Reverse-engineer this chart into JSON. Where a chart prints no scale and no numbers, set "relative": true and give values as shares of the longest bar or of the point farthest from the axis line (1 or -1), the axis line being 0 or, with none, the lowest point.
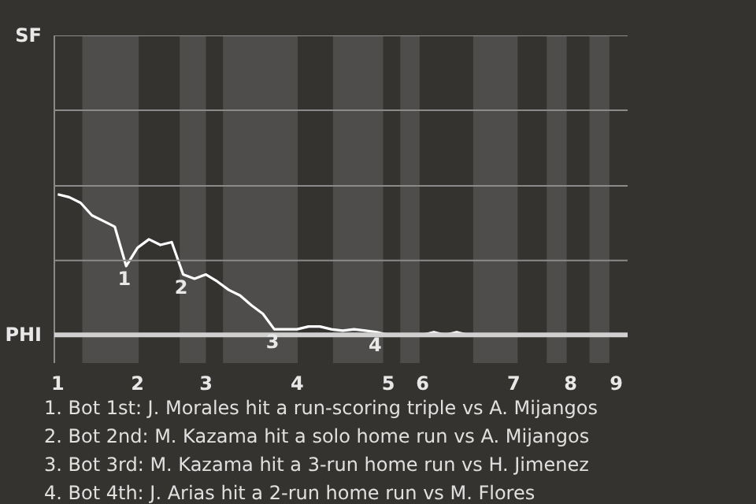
{
  "chart_data": {
    "type": "line",
    "relative": true,
    "categories": [
      "1",
      null,
      null,
      null,
      null,
      null,
      null,
      "2",
      null,
      null,
      null,
      null,
      null,
      "3",
      null,
      null,
      null,
      null,
      null,
      null,
      null,
      "4",
      null,
      null,
      null,
      null,
      null,
      null,
      null,
      "5",
      null,
      null,
      "6",
      null,
      null,
      null,
      null,
      null,
      null,
      null,
      "7",
      null,
      null,
      null,
      null,
      "8",
      null,
      null,
      null,
      "9",
      null
    ],
    "series": [
      {
        "color": "#ffffff",
        "values": [
          1,
          0.98,
          0.94,
          0.85,
          0.81,
          0.77,
          0.49,
          0.62,
          0.68,
          0.64,
          0.66,
          0.43,
          0.4,
          0.43,
          0.38,
          0.32,
          0.28,
          0.21,
          0.15,
          0.04,
          0.04,
          0.04,
          0.06,
          0.06,
          0.04,
          0.03,
          0.04,
          0.03,
          0.02,
          0,
          0,
          0,
          0,
          0.02,
          0,
          0.02,
          0,
          0,
          0,
          0,
          0,
          0,
          0,
          0,
          0,
          0,
          0,
          0,
          0,
          0,
          0
        ]
      }
    ],
    "marker": "none",
    "line_style": "solid",
    "ref_lines": [
      {
        "axis": "y",
        "value": 0.53,
        "color": "#8a8a8a"
      },
      {
        "axis": "y",
        "value": 1.06,
        "color": "#8a8a8a"
      }
    ],
    "annotations": [
      "SF",
      "PHI",
      {
        "text": "1",
        "y": 0.49
      },
      {
        "text": "2",
        "y": 0.43
      },
      {
        "text": "3",
        "y": 0.04
      },
      {
        "text": "4",
        "y": 0.02
      },
      "1. Bot 1st: J. Morales hit a run-scoring triple vs A. Mijangos",
      "2. Bot 2nd: M. Kazama hit a solo home run vs A. Mijangos",
      "3. Bot 3rd: M. Kazama hit a 3-run home run vs H. Jimenez",
      "4. Bot 4th: J. Arias hit a 2-run home run vs M. Flores"
    ]
  }
}
